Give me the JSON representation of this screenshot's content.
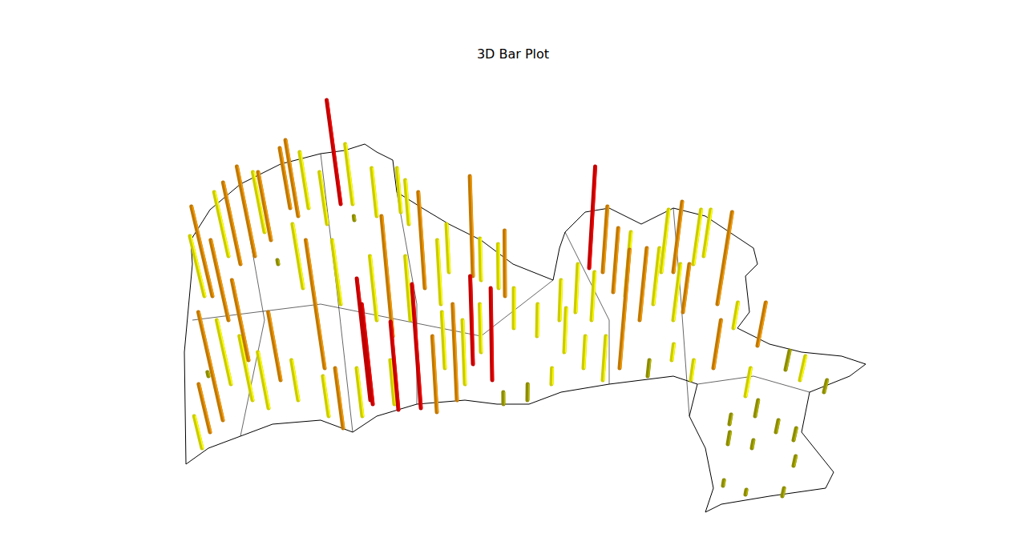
{
  "chart_data": {
    "type": "bar3d",
    "title": "3D Bar Plot",
    "xlim": [
      0,
      128
    ],
    "ylim": [
      0,
      67.1
    ],
    "grid": false,
    "tick_labels": false,
    "series": [
      {
        "color": "#8c8c00",
        "x": [
          102.8,
          98.0,
          94.2,
          91.0,
          96.8,
          99.0,
          90.8,
          93.8,
          99.0,
          90.2,
          93.0,
          97.6,
          80.8,
          65.8,
          62.8,
          26.0,
          34.7,
          44.2
        ],
        "y": [
          18.1,
          20.9,
          15.1,
          14.1,
          13.1,
          12.1,
          11.6,
          11.1,
          8.9,
          6.4,
          5.3,
          5.1,
          20.1,
          17.1,
          16.6,
          20.1,
          34.1,
          39.6
        ],
        "values": [
          1.5,
          2.4,
          2.0,
          1.2,
          1.5,
          1.5,
          1.5,
          1.0,
          1.2,
          0.7,
          0.6,
          1.0,
          2.0,
          2.0,
          1.5,
          0.5,
          0.5,
          0.5
        ]
      },
      {
        "color": "#cccc00",
        "x": [
          25.5,
          28.5,
          33.0,
          38.5,
          40.8,
          44.0,
          47.0,
          50.0,
          51.0,
          56.0,
          60.0,
          62.2,
          37.8,
          42.5,
          47.0,
          51.2,
          55.0,
          28.8,
          31.5,
          33.5,
          25.2,
          37.2,
          41.0,
          45.2,
          49.2,
          55.5,
          58.0,
          60.0,
          64.1,
          67.0,
          69.8,
          71.8,
          73.8,
          78.0,
          82.5,
          86.5,
          87.8,
          81.5,
          84.0,
          75.2,
          91.5,
          93.0,
          99.8,
          70.4,
          72.8,
          68.8,
          83.8,
          86.2
        ],
        "y": [
          30.1,
          35.1,
          38.1,
          41.1,
          39.1,
          41.6,
          40.1,
          40.6,
          39.1,
          33.1,
          32.1,
          31.1,
          31.1,
          29.1,
          27.1,
          27.1,
          29.1,
          19.1,
          17.1,
          16.1,
          11.1,
          17.1,
          15.1,
          15.1,
          16.6,
          21.1,
          19.1,
          23.1,
          26.1,
          25.1,
          27.1,
          28.1,
          27.1,
          30.1,
          33.1,
          34.1,
          35.1,
          29.1,
          27.1,
          19.6,
          26.1,
          17.6,
          19.6,
          23.1,
          21.1,
          19.1,
          22.1,
          19.6
        ],
        "values": [
          7.5,
          8.0,
          7.5,
          7.0,
          6.5,
          7.5,
          6.0,
          5.5,
          5.5,
          6.0,
          5.2,
          5.5,
          8.0,
          8.0,
          8.0,
          8.0,
          8.0,
          8.0,
          8.0,
          7.0,
          4.0,
          5.0,
          5.0,
          6.0,
          5.5,
          7.0,
          8.0,
          6.0,
          5.0,
          4.0,
          5.0,
          6.0,
          6.0,
          8.0,
          7.8,
          6.8,
          5.8,
          7.0,
          7.0,
          5.5,
          3.2,
          3.5,
          3.0,
          5.5,
          4.0,
          2.0,
          2.0,
          2.5
        ]
      },
      {
        "color": "#c07800",
        "x": [
          26.5,
          30.0,
          31.8,
          37.2,
          36.2,
          33.8,
          59.0,
          63.0,
          89.5,
          84.0,
          75.2,
          77.3,
          89.0,
          94.5,
          27.8,
          31.0,
          26.2,
          35.0,
          40.5,
          42.8,
          49.0,
          53.0,
          54.5,
          57.0,
          79.8,
          85.2,
          76.5,
          28.5
        ],
        "y": [
          30.1,
          34.1,
          35.1,
          40.1,
          41.1,
          37.1,
          32.6,
          30.1,
          29.1,
          33.1,
          33.1,
          21.1,
          21.1,
          23.9,
          14.6,
          22.1,
          13.1,
          19.6,
          21.1,
          13.6,
          25.1,
          31.1,
          15.6,
          17.1,
          27.1,
          28.1,
          30.6,
          27.1
        ],
        "values": [
          11.2,
          10.2,
          11.2,
          9.5,
          7.5,
          8.5,
          12.5,
          8.2,
          11.5,
          8.8,
          8.2,
          14.8,
          6.0,
          5.4,
          13.5,
          10.0,
          6.0,
          8.5,
          16.0,
          7.5,
          15.0,
          12.0,
          9.5,
          12.0,
          9.0,
          6.0,
          8.0,
          10.0
        ]
      },
      {
        "color": "#c00000",
        "x": [
          42.5,
          73.5,
          46.2,
          46.5,
          52.5,
          59.0,
          61.4,
          49.7
        ],
        "y": [
          41.6,
          33.6,
          17.1,
          16.6,
          16.1,
          21.6,
          19.6,
          15.9
        ],
        "values": [
          13.0,
          12.7,
          15.2,
          12.5,
          15.5,
          11.0,
          11.5,
          11.0
        ]
      }
    ]
  }
}
